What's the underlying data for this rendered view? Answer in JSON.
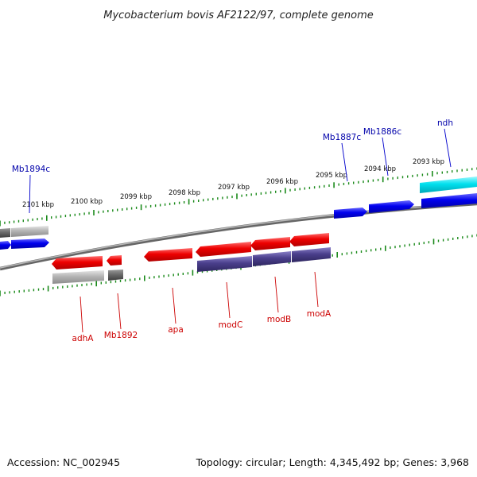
{
  "title": "Mycobacterium bovis AF2122/97, complete genome",
  "accession": "Accession: NC_002945",
  "topology": "Topology: circular; Length: 4,345,492 bp; Genes: 3,968",
  "colors": {
    "forward_gene": "#0000ee",
    "reverse_gene": "#ee0000",
    "forward_label": "#0000aa",
    "reverse_label": "#cc0000",
    "forward_scale_ticks": "#1a8a1a",
    "reverse_scale_ticks": "#1a8a1a",
    "backbone": "#8a8a8a",
    "cds_purple": "#4a3f8c",
    "cds_gray": "#b4b4b4",
    "cds_dark_gray": "#6a6a6a",
    "cds_cyan": "#00e0ee"
  },
  "scale_labels": [
    "2101 kbp",
    "2100 kbp",
    "2099 kbp",
    "2098 kbp",
    "2097 kbp",
    "2096 kbp",
    "2095 kbp",
    "2094 kbp",
    "2093 kbp"
  ],
  "forward_genes": [
    "Mb1894c",
    "Mb1887c",
    "Mb1886c",
    "ndh"
  ],
  "reverse_genes": [
    "adhA",
    "Mb1892",
    "apa",
    "modC",
    "modB",
    "modA"
  ]
}
